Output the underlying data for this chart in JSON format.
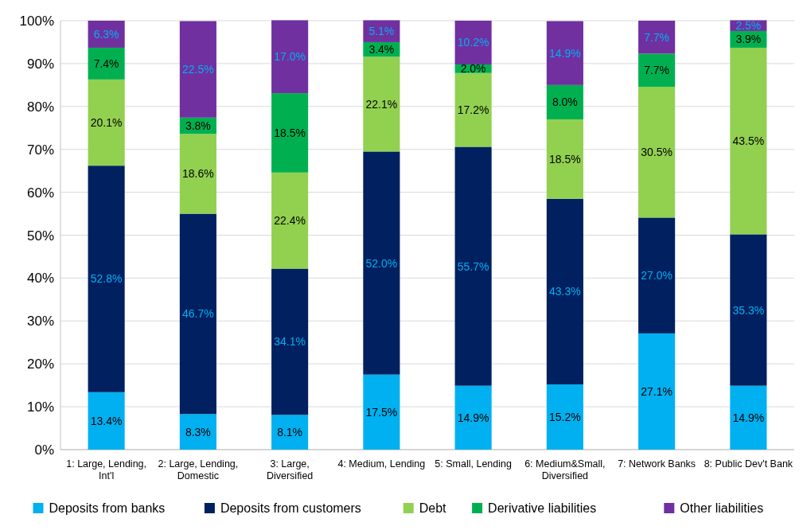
{
  "chart_data": {
    "type": "bar",
    "stacked": true,
    "categories": [
      "1: Large, Lending, Int'l",
      "2: Large, Lending, Domestic",
      "3: Large, Diversified",
      "4: Medium, Lending",
      "5: Small, Lending",
      "6: Medium&Small, Diversified",
      "7: Network Banks",
      "8: Public Dev't Bank"
    ],
    "series": [
      {
        "name": "Deposits from banks",
        "color": "#00b0f0",
        "values": [
          13.4,
          8.3,
          8.1,
          17.5,
          14.9,
          15.2,
          27.1,
          14.9
        ],
        "value_labels": [
          "13.4%",
          "8.3%",
          "8.1%",
          "17.5%",
          "14.9%",
          "15.2%",
          "27.1%",
          "14.9%"
        ]
      },
      {
        "name": "Deposits from customers",
        "color": "#002060",
        "values": [
          52.8,
          46.7,
          34.1,
          52.0,
          55.7,
          43.3,
          27.0,
          35.3
        ],
        "value_labels": [
          "52.8%",
          "46.7%",
          "34.1%",
          "52.0%",
          "55.7%",
          "43.3%",
          "27.0%",
          "35.3%"
        ]
      },
      {
        "name": "Debt",
        "color": "#92d050",
        "values": [
          20.1,
          18.6,
          22.4,
          22.1,
          17.2,
          18.5,
          30.5,
          43.5
        ],
        "value_labels": [
          "20.1%",
          "18.6%",
          "22.4%",
          "22.1%",
          "17.2%",
          "18.5%",
          "30.5%",
          "43.5%"
        ]
      },
      {
        "name": "Derivative liabilities",
        "color": "#00b050",
        "values": [
          7.4,
          3.8,
          18.5,
          3.4,
          2.0,
          8.0,
          7.7,
          3.9
        ],
        "value_labels": [
          "7.4%",
          "3.8%",
          "18.5%",
          "3.4%",
          "2.0%",
          "8.0%",
          "7.7%",
          "3.9%"
        ]
      },
      {
        "name": "Other liabilities",
        "color": "#7030a0",
        "values": [
          6.3,
          22.5,
          17.0,
          5.1,
          10.2,
          14.9,
          7.7,
          2.5
        ],
        "value_labels": [
          "6.3%",
          "22.5%",
          "17.0%",
          "5.1%",
          "10.2%",
          "14.9%",
          "7.7%",
          "2.5%"
        ]
      }
    ],
    "ylim": [
      0,
      100
    ],
    "yticks": [
      {
        "value": 0,
        "label": "0%"
      },
      {
        "value": 10,
        "label": "10%"
      },
      {
        "value": 20,
        "label": "20%"
      },
      {
        "value": 30,
        "label": "30%"
      },
      {
        "value": 40,
        "label": "40%"
      },
      {
        "value": 50,
        "label": "50%"
      },
      {
        "value": 60,
        "label": "60%"
      },
      {
        "value": 70,
        "label": "70%"
      },
      {
        "value": 80,
        "label": "80%"
      },
      {
        "value": 90,
        "label": "90%"
      },
      {
        "value": 100,
        "label": "100%"
      }
    ],
    "grid": "y",
    "legend": "bottom"
  }
}
